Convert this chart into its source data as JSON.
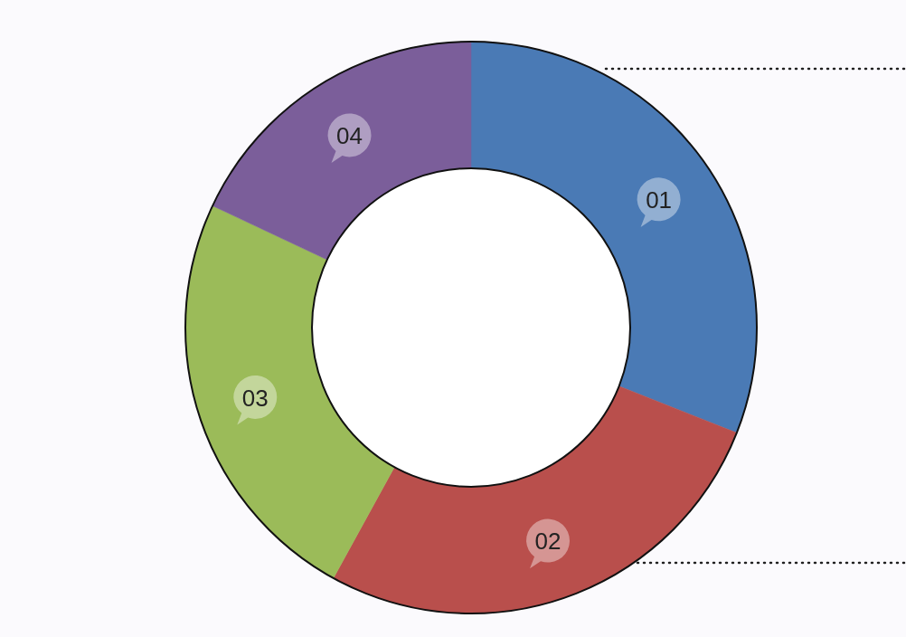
{
  "chart_data": {
    "type": "donut",
    "categories": [
      "01",
      "02",
      "03",
      "04"
    ],
    "values": [
      31,
      27,
      24,
      18
    ],
    "colors": [
      "#4a7ab5",
      "#b94f4c",
      "#9bbb59",
      "#7b5e9a"
    ]
  }
}
